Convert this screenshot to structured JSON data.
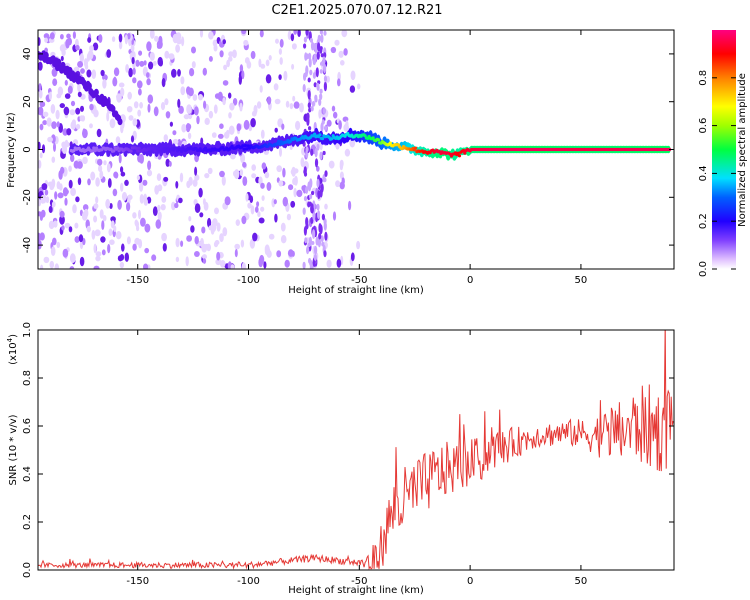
{
  "title": "C2E1.2025.070.07.12.R21",
  "colors": {
    "snr_line": "#e53935",
    "ridge_core": "#e8004a",
    "ridge_mid": "#00c8ff",
    "scatter": "#6a1de8"
  },
  "chart_data": [
    {
      "type": "heatmap",
      "xlabel": "Height of straight line (km)",
      "ylabel": "Frequency (Hz)",
      "xlim": [
        -195,
        92
      ],
      "ylim": [
        -50,
        50
      ],
      "xticks": [
        -150,
        -100,
        -50,
        0,
        50
      ],
      "yticks": [
        -40,
        -20,
        0,
        20,
        40
      ],
      "colorbar": {
        "label": "Normalized spectral amplitude",
        "range": [
          0,
          1
        ],
        "ticks": [
          0.0,
          0.2,
          0.4,
          0.6,
          0.8
        ],
        "tick_labels": [
          "0.0",
          "0.2",
          "0.4",
          "0.6",
          "0.8"
        ],
        "colors": [
          "#ffffff",
          "#c080ff",
          "#6000ff",
          "#0000ff",
          "#00ffff",
          "#00ff00",
          "#ffff00",
          "#ff8000",
          "#ff0000",
          "#ff0080"
        ]
      },
      "ridge": {
        "x": [
          -180,
          -160,
          -150,
          -140,
          -120,
          -100,
          -90,
          -80,
          -75,
          -70,
          -65,
          -60,
          -55,
          -50,
          -45,
          -40,
          -35,
          -30,
          -25,
          -20,
          -15,
          -10,
          -5,
          0,
          10,
          30,
          50,
          70,
          90
        ],
        "y": [
          0,
          0,
          0,
          0,
          0,
          1,
          2,
          4,
          5,
          6,
          5,
          5,
          6,
          6,
          5,
          3,
          2,
          1,
          0,
          -1,
          -1,
          -2,
          -2,
          0,
          0,
          0,
          0,
          0,
          0
        ],
        "amplitude": [
          0.1,
          0.12,
          0.15,
          0.18,
          0.22,
          0.25,
          0.3,
          0.35,
          0.38,
          0.4,
          0.4,
          0.42,
          0.45,
          0.5,
          0.55,
          0.6,
          0.7,
          0.75,
          0.85,
          0.9,
          0.95,
          0.95,
          0.9,
          0.95,
          0.97,
          0.98,
          0.96,
          0.97,
          0.98
        ]
      },
      "diagonal_streak": {
        "x": [
          -195,
          -185,
          -175,
          -165,
          -158
        ],
        "y": [
          40,
          35,
          28,
          20,
          12
        ]
      },
      "noise_region_x": [
        -195,
        -50
      ]
    },
    {
      "type": "line",
      "xlabel": "Height of straight line (km)",
      "ylabel": "SNR (10 * v/v)",
      "y_multiplier": "(x10",
      "y_multiplier_exp": "4",
      "y_multiplier_close": ")",
      "xlim": [
        -195,
        92
      ],
      "ylim": [
        0,
        1.0
      ],
      "xticks": [
        -150,
        -100,
        -50,
        0,
        50
      ],
      "yticks": [
        0.0,
        0.2,
        0.4,
        0.6,
        0.8,
        1.0
      ],
      "ytick_labels": [
        "0.0",
        "0.2",
        "0.4",
        "0.6",
        "0.8",
        "1.0"
      ],
      "envelope": {
        "x": [
          -195,
          -150,
          -100,
          -80,
          -70,
          -60,
          -50,
          -45,
          -42,
          -40,
          -38,
          -36,
          -34,
          -30,
          -25,
          -20,
          -15,
          -10,
          -5,
          0,
          5,
          10,
          15,
          20,
          30,
          40,
          50,
          60,
          70,
          75,
          80,
          85,
          90
        ],
        "y": [
          0.02,
          0.02,
          0.02,
          0.04,
          0.05,
          0.04,
          0.03,
          0.03,
          0.05,
          0.1,
          0.16,
          0.22,
          0.26,
          0.28,
          0.33,
          0.36,
          0.4,
          0.42,
          0.43,
          0.45,
          0.46,
          0.5,
          0.51,
          0.53,
          0.56,
          0.57,
          0.57,
          0.56,
          0.58,
          0.6,
          0.6,
          0.58,
          0.6
        ]
      },
      "noise_amplitude": {
        "x": [
          -195,
          -50,
          -40,
          -30,
          -20,
          0,
          30,
          50,
          60,
          70,
          80,
          90
        ],
        "y": [
          0.01,
          0.015,
          0.1,
          0.15,
          0.13,
          0.1,
          0.05,
          0.06,
          0.1,
          0.14,
          0.18,
          0.18
        ]
      }
    }
  ]
}
